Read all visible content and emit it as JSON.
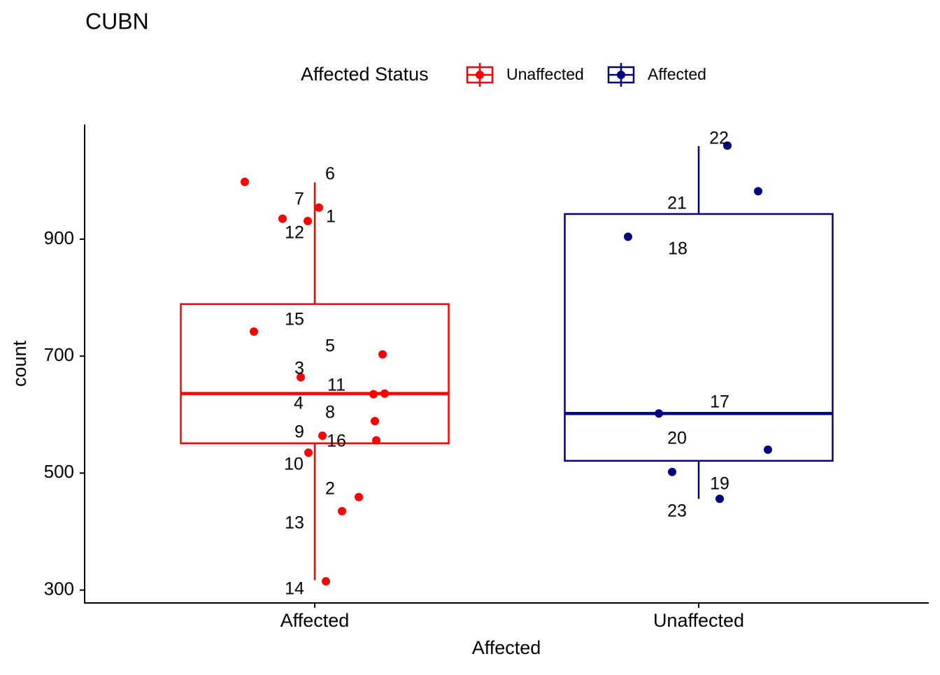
{
  "chart_data": {
    "type": "box",
    "title": "CUBN",
    "xlabel": "Affected",
    "ylabel": "count",
    "legend_title": "Affected Status",
    "legend_position": "top",
    "categories": [
      "Affected",
      "Unaffected"
    ],
    "ylim": [
      278,
      1096
    ],
    "yticks": [
      300,
      500,
      700,
      900
    ],
    "series": [
      {
        "name": "Unaffected",
        "color": "#ff0000",
        "box": {
          "whislo": 317,
          "q1": 551,
          "median": 636,
          "q3": 789,
          "whishi": 997
        },
        "points": [
          998,
          954,
          931,
          935,
          742,
          703,
          664,
          636,
          635,
          589,
          564,
          556,
          535,
          459,
          435,
          315
        ],
        "point_labels": [
          "6",
          "7",
          "1",
          "12",
          "15",
          "5",
          "3",
          "11",
          "4",
          "8",
          "9",
          "16",
          "10",
          "2",
          "13",
          "14"
        ]
      },
      {
        "name": "Affected",
        "color": "#000080",
        "box": {
          "whislo": 456,
          "q1": 521,
          "median": 602,
          "q3": 943,
          "whishi": 1059
        },
        "points": [
          1060,
          982,
          904,
          602,
          540,
          502,
          456
        ],
        "point_labels": [
          "22",
          "21",
          "18",
          "17",
          "20",
          "19",
          "23"
        ]
      }
    ]
  }
}
